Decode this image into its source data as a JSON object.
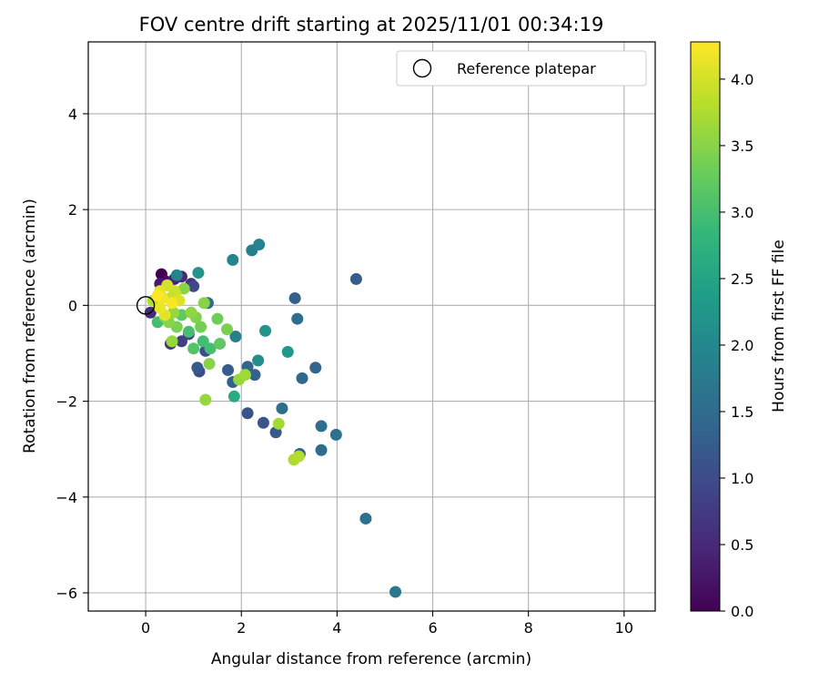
{
  "chart_data": {
    "type": "scatter",
    "title": "FOV centre drift starting at 2025/11/01 00:34:19",
    "xlabel": "Angular distance from reference (arcmin)",
    "ylabel": "Rotation from reference (arcmin)",
    "xlim": [
      -1.2,
      10.65
    ],
    "ylim": [
      -6.38,
      5.5
    ],
    "xticks": [
      0,
      2,
      4,
      6,
      8,
      10
    ],
    "yticks": [
      -6,
      -4,
      -2,
      0,
      2,
      4
    ],
    "grid": true,
    "legend": {
      "placement": "top-right",
      "entries": [
        "Reference platepar"
      ]
    },
    "reference_point": {
      "x": 0,
      "y": 0,
      "label": "Reference platepar"
    },
    "colorbar": {
      "label": "Hours from first FF file",
      "colormap": "viridis",
      "range": [
        0,
        4.28
      ],
      "ticks": [
        "0.0",
        "0.5",
        "1.0",
        "1.5",
        "2.0",
        "2.5",
        "3.0",
        "3.5",
        "4.0"
      ],
      "stops": [
        "#440154",
        "#482878",
        "#3e4989",
        "#31688e",
        "#26828e",
        "#1f9e89",
        "#35b779",
        "#6ece58",
        "#b5de2b",
        "#fde725"
      ]
    },
    "points": [
      {
        "x": 0.33,
        "y": 0.65,
        "h": 0.0
      },
      {
        "x": 0.42,
        "y": 0.5,
        "h": 0.15
      },
      {
        "x": 0.3,
        "y": 0.45,
        "h": 0.3
      },
      {
        "x": 0.6,
        "y": 0.55,
        "h": 0.4
      },
      {
        "x": 0.75,
        "y": 0.6,
        "h": 0.5
      },
      {
        "x": 0.95,
        "y": 0.45,
        "h": 0.6
      },
      {
        "x": 0.1,
        "y": -0.15,
        "h": 0.5
      },
      {
        "x": 0.2,
        "y": 0.1,
        "h": 0.3
      },
      {
        "x": 0.52,
        "y": -0.8,
        "h": 0.7
      },
      {
        "x": 0.75,
        "y": -0.75,
        "h": 0.8
      },
      {
        "x": 0.9,
        "y": -0.6,
        "h": 0.9
      },
      {
        "x": 1.0,
        "y": 0.4,
        "h": 0.95
      },
      {
        "x": 1.12,
        "y": -1.38,
        "h": 1.0
      },
      {
        "x": 1.25,
        "y": -0.95,
        "h": 1.05
      },
      {
        "x": 1.08,
        "y": -1.3,
        "h": 1.2
      },
      {
        "x": 1.72,
        "y": -1.35,
        "h": 1.25
      },
      {
        "x": 1.82,
        "y": -1.6,
        "h": 1.3
      },
      {
        "x": 2.13,
        "y": -1.28,
        "h": 1.4
      },
      {
        "x": 2.28,
        "y": -1.45,
        "h": 1.35
      },
      {
        "x": 2.13,
        "y": -2.25,
        "h": 1.1
      },
      {
        "x": 2.46,
        "y": -2.45,
        "h": 1.15
      },
      {
        "x": 2.72,
        "y": -2.65,
        "h": 1.2
      },
      {
        "x": 2.85,
        "y": -2.15,
        "h": 1.5
      },
      {
        "x": 3.22,
        "y": -3.1,
        "h": 1.3
      },
      {
        "x": 3.67,
        "y": -3.02,
        "h": 1.5
      },
      {
        "x": 3.67,
        "y": -2.52,
        "h": 1.55
      },
      {
        "x": 3.98,
        "y": -2.7,
        "h": 1.6
      },
      {
        "x": 3.55,
        "y": -1.3,
        "h": 1.4
      },
      {
        "x": 3.27,
        "y": -1.52,
        "h": 1.45
      },
      {
        "x": 3.12,
        "y": 0.15,
        "h": 1.3
      },
      {
        "x": 3.17,
        "y": -0.28,
        "h": 1.5
      },
      {
        "x": 4.4,
        "y": 0.55,
        "h": 1.25
      },
      {
        "x": 4.6,
        "y": -4.45,
        "h": 1.6
      },
      {
        "x": 5.22,
        "y": -5.98,
        "h": 1.7
      },
      {
        "x": 2.22,
        "y": 1.15,
        "h": 1.85
      },
      {
        "x": 2.37,
        "y": 1.27,
        "h": 1.9
      },
      {
        "x": 1.82,
        "y": 0.95,
        "h": 1.95
      },
      {
        "x": 1.88,
        "y": -0.65,
        "h": 1.85
      },
      {
        "x": 2.5,
        "y": -0.53,
        "h": 2.2
      },
      {
        "x": 2.35,
        "y": -1.15,
        "h": 2.1
      },
      {
        "x": 2.97,
        "y": -0.97,
        "h": 2.3
      },
      {
        "x": 1.3,
        "y": 0.05,
        "h": 1.5
      },
      {
        "x": 1.1,
        "y": 0.68,
        "h": 2.2
      },
      {
        "x": 0.65,
        "y": 0.63,
        "h": 1.9
      },
      {
        "x": 1.85,
        "y": -1.9,
        "h": 2.6
      },
      {
        "x": 1.25,
        "y": -1.97,
        "h": 3.6
      },
      {
        "x": 2.78,
        "y": -2.47,
        "h": 3.7
      },
      {
        "x": 3.1,
        "y": -3.22,
        "h": 3.75
      },
      {
        "x": 3.2,
        "y": -3.15,
        "h": 3.8
      },
      {
        "x": 1.33,
        "y": -1.22,
        "h": 3.5
      },
      {
        "x": 1.95,
        "y": -1.55,
        "h": 3.6
      },
      {
        "x": 2.08,
        "y": -1.45,
        "h": 3.65
      },
      {
        "x": 1.7,
        "y": -0.5,
        "h": 3.4
      },
      {
        "x": 1.5,
        "y": -0.28,
        "h": 3.3
      },
      {
        "x": 1.55,
        "y": -0.8,
        "h": 3.2
      },
      {
        "x": 1.35,
        "y": -0.9,
        "h": 3.0
      },
      {
        "x": 1.2,
        "y": -0.75,
        "h": 2.95
      },
      {
        "x": 1.0,
        "y": -0.9,
        "h": 3.1
      },
      {
        "x": 0.9,
        "y": -0.55,
        "h": 3.0
      },
      {
        "x": 1.15,
        "y": -0.45,
        "h": 3.35
      },
      {
        "x": 1.22,
        "y": 0.05,
        "h": 3.5
      },
      {
        "x": 0.8,
        "y": 0.35,
        "h": 3.5
      },
      {
        "x": 0.55,
        "y": -0.75,
        "h": 3.6
      },
      {
        "x": 0.25,
        "y": -0.35,
        "h": 3.0
      },
      {
        "x": 0.4,
        "y": -0.25,
        "h": 3.3
      },
      {
        "x": 0.65,
        "y": -0.45,
        "h": 3.4
      },
      {
        "x": 0.75,
        "y": -0.2,
        "h": 3.2
      },
      {
        "x": 1.05,
        "y": -0.25,
        "h": 3.45
      },
      {
        "x": 0.95,
        "y": -0.15,
        "h": 3.55
      },
      {
        "x": 0.48,
        "y": -0.35,
        "h": 3.5
      },
      {
        "x": 0.58,
        "y": -0.15,
        "h": 3.6
      },
      {
        "x": 0.15,
        "y": 0.1,
        "h": 3.8
      },
      {
        "x": 0.5,
        "y": 0.15,
        "h": 3.9
      },
      {
        "x": 0.62,
        "y": 0.25,
        "h": 3.95
      },
      {
        "x": 0.3,
        "y": 0.3,
        "h": 4.1
      },
      {
        "x": 0.45,
        "y": 0.42,
        "h": 4.0
      },
      {
        "x": 0.35,
        "y": 0.15,
        "h": 4.2
      },
      {
        "x": 0.55,
        "y": 0.05,
        "h": 4.25
      },
      {
        "x": 0.3,
        "y": -0.05,
        "h": 4.15
      },
      {
        "x": 0.7,
        "y": 0.1,
        "h": 4.05
      },
      {
        "x": 0.4,
        "y": -0.2,
        "h": 4.1
      },
      {
        "x": 0.6,
        "y": 0.3,
        "h": 3.95
      },
      {
        "x": 0.25,
        "y": 0.2,
        "h": 4.28
      }
    ]
  }
}
